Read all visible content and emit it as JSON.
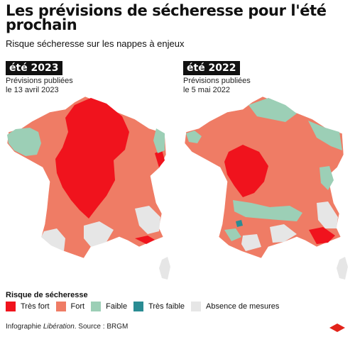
{
  "title": "Les prévisions de sécheresse pour l'été prochain",
  "subtitle": "Risque sécheresse sur les nappes à enjeux",
  "panels": [
    {
      "year_label": "été 2023",
      "pub_line1": "Prévisions publiées",
      "pub_line2": "le 13 avril 2023"
    },
    {
      "year_label": "été 2022",
      "pub_line1": "Prévisions publiées",
      "pub_line2": "le 5 mai 2022"
    }
  ],
  "legend": {
    "title": "Risque de sécheresse",
    "items": [
      {
        "label": "Très fort",
        "color": "#f0131d"
      },
      {
        "label": "Fort",
        "color": "#ef7c65"
      },
      {
        "label": "Faible",
        "color": "#9ccfb6"
      },
      {
        "label": "Très faible",
        "color": "#2a8c93"
      },
      {
        "label": "Absence de mesures",
        "color": "#e6e6e6"
      }
    ]
  },
  "footer": {
    "prefix": "Infographie ",
    "brand": "Libération",
    "source": ". Source : BRGM"
  },
  "colors": {
    "very_high": "#f0131d",
    "high": "#ef7c65",
    "low": "#9ccfb6",
    "very_low": "#2a8c93",
    "no_data": "#e6e6e6",
    "logo": "#e2231a"
  }
}
